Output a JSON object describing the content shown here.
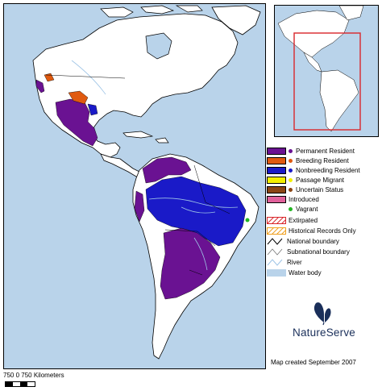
{
  "colors": {
    "water": "#b9d3ea",
    "land": "#ffffff",
    "permanent_resident": "#6a1292",
    "breeding_resident": "#e05a10",
    "nonbreeding_resident": "#1a1ac8",
    "passage_migrant": "#f4f000",
    "uncertain_status": "#8b4513",
    "introduced": "#e0609a",
    "vagrant": "#22b522",
    "inset_frame": "#d9262b"
  },
  "legend": {
    "items": [
      {
        "label": "Permanent Resident",
        "color": "#6a1292",
        "symbol": "swatch-dot"
      },
      {
        "label": "Breeding Resident",
        "color": "#e05a10",
        "symbol": "swatch-dot"
      },
      {
        "label": "Nonbreeding Resident",
        "color": "#1a1ac8",
        "symbol": "swatch-dot"
      },
      {
        "label": "Passage Migrant",
        "color": "#f4f000",
        "symbol": "swatch-dot"
      },
      {
        "label": "Uncertain Status",
        "color": "#8b4513",
        "symbol": "swatch-dot"
      },
      {
        "label": "Introduced",
        "color": "#e0609a",
        "symbol": "swatch"
      },
      {
        "label": "Vagrant",
        "color": "#22b522",
        "symbol": "dot"
      },
      {
        "label": "Extirpated",
        "color": "#d9262b",
        "symbol": "hatch"
      },
      {
        "label": "Historical Records Only",
        "color": "#f0a020",
        "symbol": "hatch"
      },
      {
        "label": "National boundary",
        "color": "#000000",
        "symbol": "line"
      },
      {
        "label": "Subnational boundary",
        "color": "#777777",
        "symbol": "line"
      },
      {
        "label": "River",
        "color": "#9ec4e6",
        "symbol": "line"
      },
      {
        "label": "Water body",
        "color": "#b9d3ea",
        "symbol": "swatch"
      }
    ]
  },
  "logo": {
    "text": "NatureServe",
    "icon": "butterfly-icon"
  },
  "credit": "Map created September 2007",
  "scale": {
    "label": "750    0    750   Kilometers"
  }
}
